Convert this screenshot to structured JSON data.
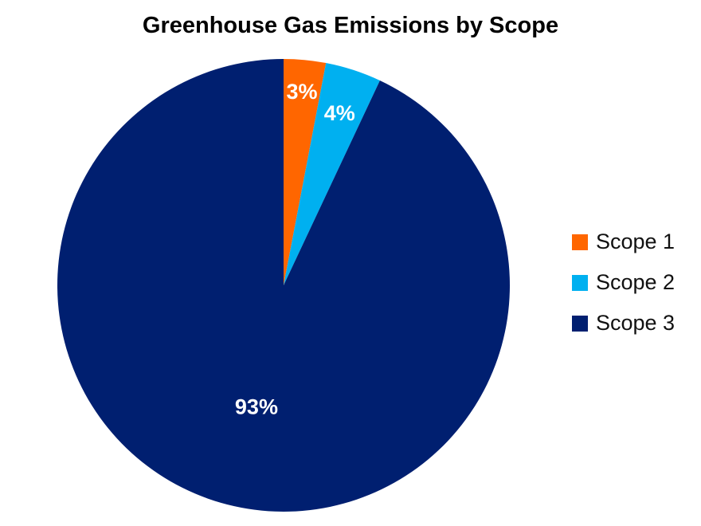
{
  "chart_data": {
    "type": "pie",
    "title": "Greenhouse Gas Emissions by Scope",
    "categories": [
      "Scope 1",
      "Scope 2",
      "Scope 3"
    ],
    "values": [
      3,
      4,
      93
    ],
    "labels": [
      "3%",
      "4%",
      "93%"
    ],
    "colors": [
      "#ff6600",
      "#00b0f0",
      "#001f70"
    ],
    "legend_position": "right",
    "start_angle": "top",
    "direction": "clockwise"
  }
}
